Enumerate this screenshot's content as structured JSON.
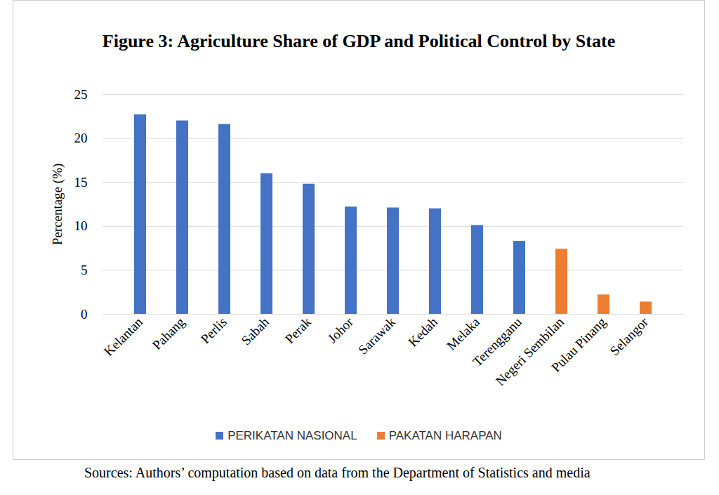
{
  "chart_data": {
    "type": "bar",
    "title": "Figure 3: Agriculture Share of GDP and Political Control by State",
    "y_label": "Percentage (%)",
    "caption": "Sources: Authors’ computation based on data from the Department of Statistics and media",
    "categories": [
      "Kelantan",
      "Pahang",
      "Perlis",
      "Sabah",
      "Perak",
      "Johor",
      "Sarawak",
      "Kedah",
      "Melaka",
      "Terengganu",
      "Negeri Sembilan",
      "Pulau Pinang",
      "Selangor"
    ],
    "series": [
      {
        "name": "PERIKATAN NASIONAL",
        "color": "#4472c4",
        "values": [
          22.7,
          22.0,
          21.6,
          16.0,
          14.8,
          12.2,
          12.1,
          12.0,
          10.1,
          8.3,
          null,
          null,
          null
        ]
      },
      {
        "name": "PAKATAN HARAPAN",
        "color": "#ed7d31",
        "values": [
          null,
          null,
          null,
          null,
          null,
          null,
          null,
          null,
          null,
          null,
          7.4,
          2.2,
          1.4
        ]
      }
    ],
    "ylim": [
      0,
      25
    ],
    "yticks": [
      0,
      5,
      10,
      15,
      20,
      25
    ],
    "grid": true,
    "legend": "bottom"
  }
}
